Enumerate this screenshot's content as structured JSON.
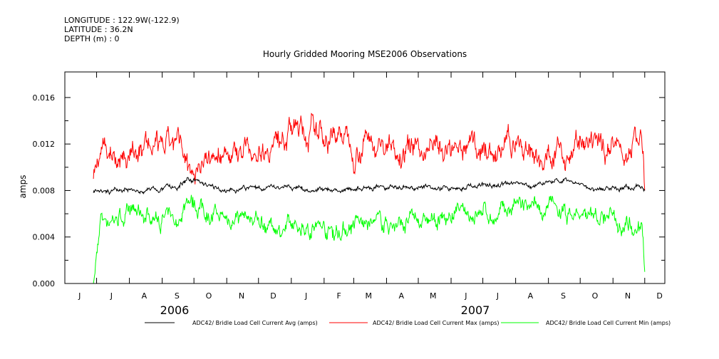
{
  "header": {
    "longitude": "LONGITUDE : 122.9W(-122.9)",
    "latitude": "LATITUDE : 36.2N",
    "depth": "DEPTH (m) : 0"
  },
  "chart_data": {
    "type": "line",
    "title": "Hourly Gridded Mooring MSE2006 Observations",
    "xlabel": "",
    "ylabel": "amps",
    "xlim": [
      "2006-06-01",
      "2007-12-20"
    ],
    "ylim": [
      0,
      0.0182
    ],
    "yticks": [
      0.0,
      0.004,
      0.008,
      0.012,
      0.016
    ],
    "ytick_labels": [
      "0.000",
      "0.004",
      "0.008",
      "0.012",
      "0.016"
    ],
    "month_labels": [
      "J",
      "J",
      "A",
      "S",
      "O",
      "N",
      "D",
      "J",
      "F",
      "M",
      "A",
      "M",
      "J",
      "J",
      "A",
      "S",
      "O",
      "N",
      "D"
    ],
    "year_labels": [
      "2006",
      "2007"
    ],
    "grid": false,
    "legend_position": "bottom",
    "dates": [
      "2006-06-28",
      "2006-07-05",
      "2006-07-15",
      "2006-08-01",
      "2006-08-15",
      "2006-09-01",
      "2006-09-15",
      "2006-09-25",
      "2006-10-05",
      "2006-10-20",
      "2006-11-01",
      "2006-11-15",
      "2006-12-01",
      "2006-12-15",
      "2007-01-01",
      "2007-01-15",
      "2007-02-01",
      "2007-02-15",
      "2007-03-01",
      "2007-03-15",
      "2007-04-01",
      "2007-04-15",
      "2007-05-01",
      "2007-05-15",
      "2007-06-01",
      "2007-06-15",
      "2007-07-01",
      "2007-07-15",
      "2007-08-01",
      "2007-08-15",
      "2007-09-01",
      "2007-09-15",
      "2007-10-01",
      "2007-10-15",
      "2007-11-01",
      "2007-11-15",
      "2007-11-28",
      "2007-12-01"
    ],
    "series": [
      {
        "name": "ADC42/ Bridle Load Cell Current Avg (amps)",
        "color": "#000000",
        "values": [
          0.0078,
          0.0078,
          0.0079,
          0.008,
          0.008,
          0.0081,
          0.0082,
          0.009,
          0.0088,
          0.0082,
          0.0081,
          0.0081,
          0.0083,
          0.0084,
          0.0082,
          0.0081,
          0.0081,
          0.0081,
          0.0081,
          0.0081,
          0.0082,
          0.0081,
          0.0082,
          0.0083,
          0.0083,
          0.0084,
          0.0084,
          0.0085,
          0.0086,
          0.0084,
          0.0089,
          0.0087,
          0.0085,
          0.0082,
          0.0082,
          0.0082,
          0.0085,
          0.008
        ]
      },
      {
        "name": "ADC42/ Bridle Load Cell Current Max (amps)",
        "color": "#ff0000",
        "values": [
          0.009,
          0.0112,
          0.0115,
          0.011,
          0.0118,
          0.0112,
          0.012,
          0.0098,
          0.0105,
          0.011,
          0.0112,
          0.0115,
          0.0118,
          0.0122,
          0.0135,
          0.013,
          0.0128,
          0.0132,
          0.0118,
          0.0125,
          0.0115,
          0.0118,
          0.0112,
          0.012,
          0.011,
          0.0115,
          0.0118,
          0.011,
          0.0122,
          0.0112,
          0.0108,
          0.0118,
          0.0115,
          0.0112,
          0.012,
          0.0118,
          0.0125,
          0.008
        ]
      },
      {
        "name": "ADC42/ Bridle Load Cell Current Min (amps)",
        "color": "#00ff00",
        "values": [
          0.0,
          0.0055,
          0.0057,
          0.0058,
          0.006,
          0.0055,
          0.0052,
          0.0075,
          0.0068,
          0.0058,
          0.0055,
          0.006,
          0.0052,
          0.005,
          0.0046,
          0.005,
          0.0048,
          0.0045,
          0.0052,
          0.005,
          0.0052,
          0.005,
          0.0055,
          0.0052,
          0.0058,
          0.006,
          0.0062,
          0.0056,
          0.0068,
          0.006,
          0.0065,
          0.006,
          0.0058,
          0.0055,
          0.0058,
          0.0055,
          0.0052,
          0.001
        ]
      }
    ]
  }
}
